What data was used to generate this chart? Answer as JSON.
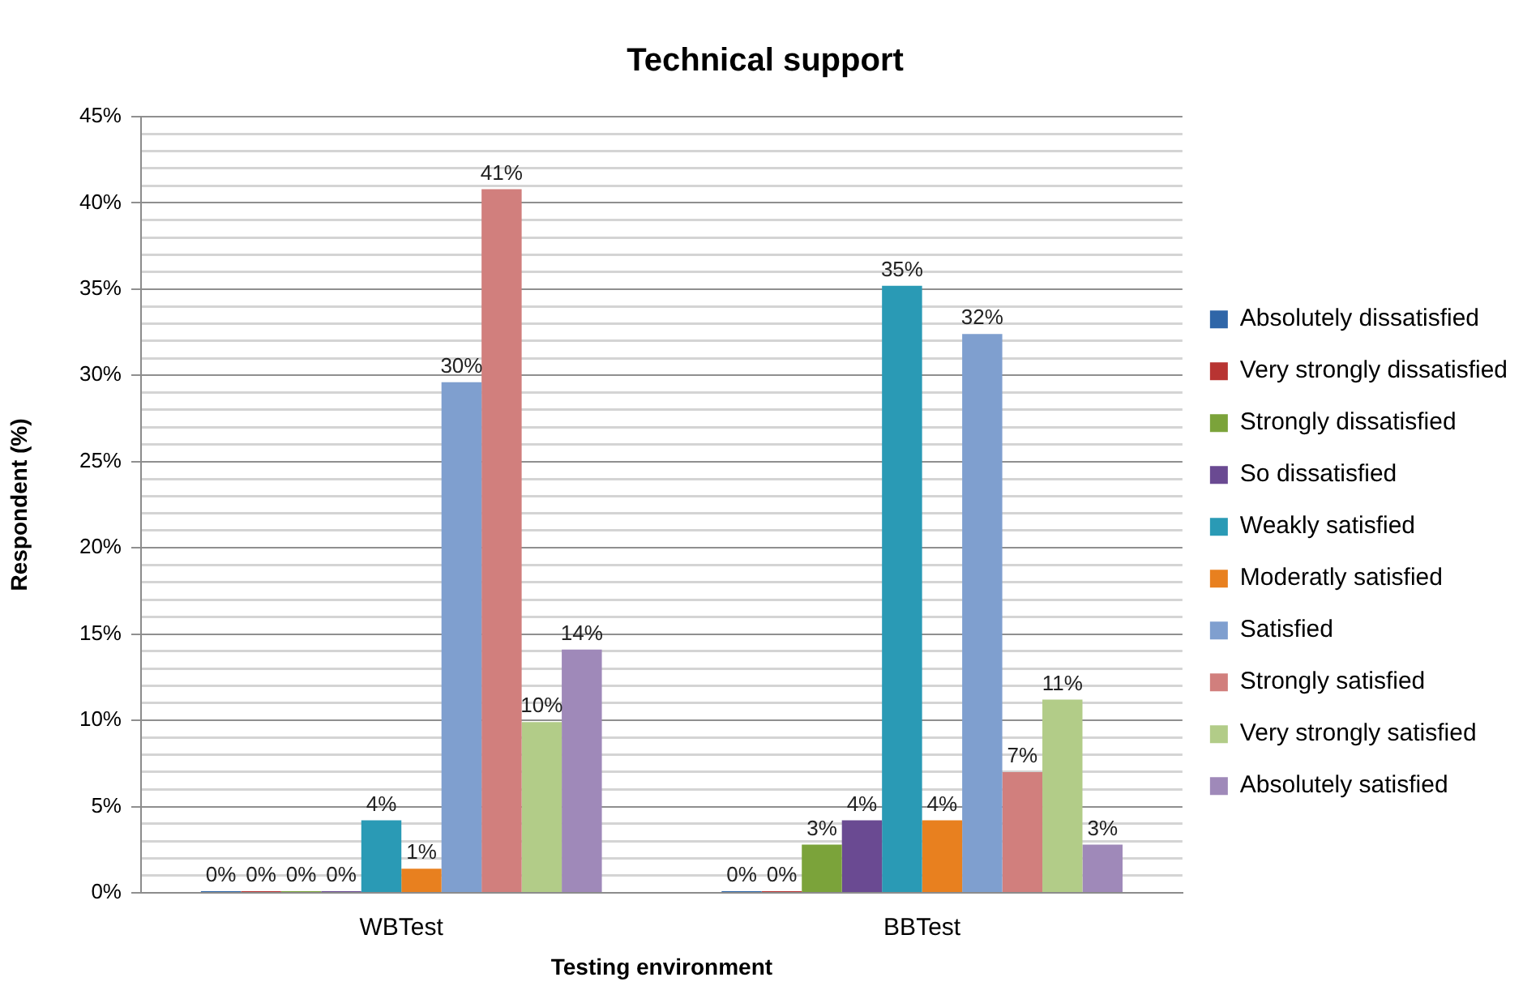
{
  "chart_data": {
    "type": "bar",
    "title": "Technical support",
    "xlabel": "Testing environment",
    "ylabel": "Respondent (%)",
    "categories": [
      "WBTest",
      "BBTest"
    ],
    "series": [
      {
        "name": "Absolutely dissatisfied",
        "color": "#2f66a8",
        "values": [
          0,
          0
        ],
        "value_labels": [
          "0%",
          "0%"
        ]
      },
      {
        "name": "Very strongly dissatisfied",
        "color": "#b83432",
        "values": [
          0,
          0
        ],
        "value_labels": [
          "0%",
          "0%"
        ]
      },
      {
        "name": "Strongly dissatisfied",
        "color": "#7ba33a",
        "values": [
          0,
          2.8
        ],
        "value_labels": [
          "0%",
          "3%"
        ]
      },
      {
        "name": "So dissatisfied",
        "color": "#6a4a92",
        "values": [
          0,
          4.2
        ],
        "value_labels": [
          "0%",
          "4%"
        ]
      },
      {
        "name": "Weakly satisfied",
        "color": "#2a9ab5",
        "values": [
          4.2,
          35.2
        ],
        "value_labels": [
          "4%",
          "35%"
        ]
      },
      {
        "name": "Moderatly satisfied",
        "color": "#e8801f",
        "values": [
          1.4,
          4.2
        ],
        "value_labels": [
          "1%",
          "4%"
        ]
      },
      {
        "name": "Satisfied",
        "color": "#7f9fcf",
        "values": [
          29.6,
          32.4
        ],
        "value_labels": [
          "30%",
          "32%"
        ]
      },
      {
        "name": "Strongly satisfied",
        "color": "#d17f7d",
        "values": [
          40.8,
          7.0
        ],
        "value_labels": [
          "41%",
          "7%"
        ]
      },
      {
        "name": "Very strongly satisfied",
        "color": "#b2cc88",
        "values": [
          9.9,
          11.2
        ],
        "value_labels": [
          "10%",
          "11%"
        ]
      },
      {
        "name": "Absolutely satisfied",
        "color": "#9f89b9",
        "values": [
          14.1,
          2.8
        ],
        "value_labels": [
          "14%",
          "3%"
        ]
      }
    ],
    "ylim": [
      0,
      45
    ],
    "yticks": [
      {
        "value": 0,
        "label": "0%"
      },
      {
        "value": 1,
        "label": null
      },
      {
        "value": 2,
        "label": null
      },
      {
        "value": 3,
        "label": null
      },
      {
        "value": 4,
        "label": null
      },
      {
        "value": 5,
        "label": "5%"
      },
      {
        "value": 6,
        "label": null
      },
      {
        "value": 7,
        "label": null
      },
      {
        "value": 8,
        "label": null
      },
      {
        "value": 9,
        "label": null
      },
      {
        "value": 10,
        "label": "10%"
      },
      {
        "value": 11,
        "label": null
      },
      {
        "value": 12,
        "label": null
      },
      {
        "value": 13,
        "label": null
      },
      {
        "value": 14,
        "label": null
      },
      {
        "value": 15,
        "label": "15%"
      },
      {
        "value": 16,
        "label": null
      },
      {
        "value": 17,
        "label": null
      },
      {
        "value": 18,
        "label": null
      },
      {
        "value": 19,
        "label": null
      },
      {
        "value": 20,
        "label": "20%"
      },
      {
        "value": 21,
        "label": null
      },
      {
        "value": 22,
        "label": null
      },
      {
        "value": 23,
        "label": null
      },
      {
        "value": 24,
        "label": null
      },
      {
        "value": 25,
        "label": "25%"
      },
      {
        "value": 26,
        "label": null
      },
      {
        "value": 27,
        "label": null
      },
      {
        "value": 28,
        "label": null
      },
      {
        "value": 29,
        "label": null
      },
      {
        "value": 30,
        "label": "30%"
      },
      {
        "value": 31,
        "label": null
      },
      {
        "value": 32,
        "label": null
      },
      {
        "value": 33,
        "label": null
      },
      {
        "value": 34,
        "label": null
      },
      {
        "value": 35,
        "label": "35%"
      },
      {
        "value": 36,
        "label": null
      },
      {
        "value": 37,
        "label": null
      },
      {
        "value": 38,
        "label": null
      },
      {
        "value": 39,
        "label": null
      },
      {
        "value": 40,
        "label": "40%"
      },
      {
        "value": 41,
        "label": null
      },
      {
        "value": 42,
        "label": null
      },
      {
        "value": 43,
        "label": null
      },
      {
        "value": 44,
        "label": null
      },
      {
        "value": 45,
        "label": "45%"
      }
    ],
    "grid": "y",
    "legend": "right"
  }
}
